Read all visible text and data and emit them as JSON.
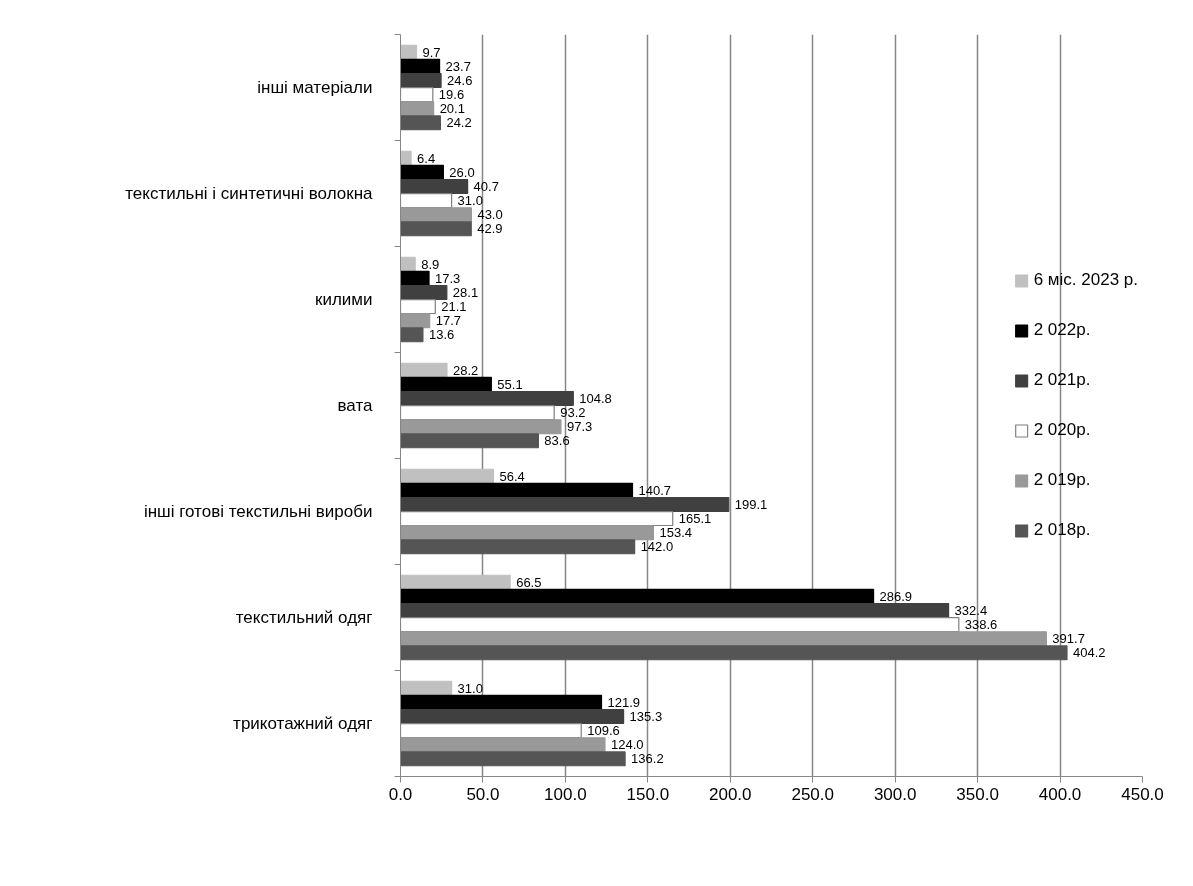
{
  "chart_data": {
    "type": "bar",
    "orientation": "horizontal",
    "categories": [
      "інші матеріали",
      "текстильні і синтетичні волокна",
      "килими",
      "вата",
      "інші готові текстильні вироби",
      "текстильний одяг",
      "трикотажний одяг"
    ],
    "series": [
      {
        "name": "6 міс. 2023 р.",
        "color": "#c0c0c0",
        "values": [
          9.7,
          6.4,
          8.9,
          28.2,
          56.4,
          66.5,
          31.0
        ],
        "value_labels": [
          "9.7",
          "6.4",
          "8.9",
          "28.2",
          "56.4",
          "66.5",
          "31.0"
        ]
      },
      {
        "name": "2 022р.",
        "color": "#000000",
        "values": [
          23.7,
          26.0,
          17.3,
          55.1,
          140.7,
          286.9,
          121.9
        ],
        "value_labels": [
          "23.7",
          "26.0",
          "17.3",
          "55.1",
          "140.7",
          "286.9",
          "121.9"
        ]
      },
      {
        "name": "2 021р.",
        "color": "#404040",
        "values": [
          24.6,
          40.7,
          28.1,
          104.8,
          199.1,
          332.4,
          135.3
        ],
        "value_labels": [
          "24.6",
          "40.7",
          "28.1",
          "104.8",
          "199.1",
          "332.4",
          "135.3"
        ]
      },
      {
        "name": "2 020р.",
        "color": "#ffffff",
        "values": [
          19.6,
          31.0,
          21.1,
          93.2,
          165.1,
          338.6,
          109.6
        ],
        "value_labels": [
          "19.6",
          "31.0",
          "21.1",
          "93.2",
          "165.1",
          "338.6",
          "109.6"
        ]
      },
      {
        "name": "2 019р.",
        "color": "#999999",
        "values": [
          20.1,
          43.0,
          17.7,
          97.3,
          153.4,
          391.7,
          124.0
        ],
        "value_labels": [
          "20.1",
          "43.0",
          "17.7",
          "97.3",
          "153.4",
          "391.7",
          "124.0"
        ]
      },
      {
        "name": "2 018р.",
        "color": "#555555",
        "values": [
          24.2,
          42.9,
          13.6,
          83.6,
          142.0,
          404.2,
          136.2
        ],
        "value_labels": [
          "24.2",
          "42.9",
          "13.6",
          "83.6",
          "142.0",
          "404.2",
          "136.2"
        ]
      }
    ],
    "xlim": [
      0,
      450
    ],
    "xticks": [
      {
        "value": 0,
        "label": "0.0"
      },
      {
        "value": 50,
        "label": "50.0"
      },
      {
        "value": 100,
        "label": "100.0"
      },
      {
        "value": 150,
        "label": "150.0"
      },
      {
        "value": 200,
        "label": "200.0"
      },
      {
        "value": 250,
        "label": "250.0"
      },
      {
        "value": 300,
        "label": "300.0"
      },
      {
        "value": 350,
        "label": "350.0"
      },
      {
        "value": 400,
        "label": "400.0"
      },
      {
        "value": 450,
        "label": "450.0"
      }
    ],
    "grid": "x",
    "legend": "right"
  }
}
